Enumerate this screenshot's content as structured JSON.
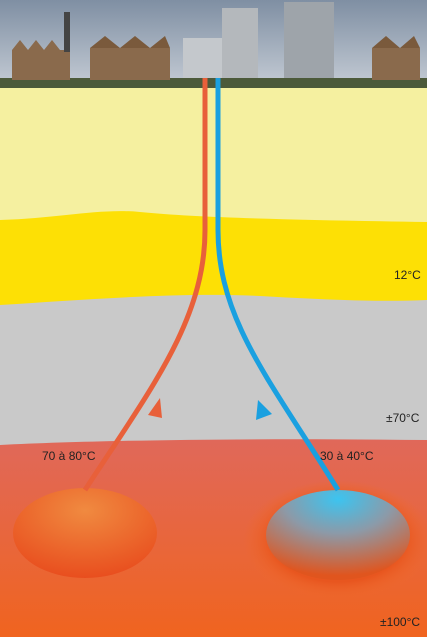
{
  "labels": {
    "production_temp": "70 à 80°C",
    "injection_temp": "30 à 40°C",
    "depth_temp_1": "12°C",
    "depth_temp_2": "±70°C",
    "depth_temp_3": "±100°C"
  }
}
